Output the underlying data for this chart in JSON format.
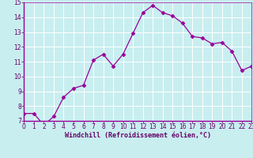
{
  "x": [
    0,
    1,
    2,
    3,
    4,
    5,
    6,
    7,
    8,
    9,
    10,
    11,
    12,
    13,
    14,
    15,
    16,
    17,
    18,
    19,
    20,
    21,
    22,
    23
  ],
  "y": [
    7.5,
    7.5,
    6.7,
    7.3,
    8.6,
    9.2,
    9.4,
    11.1,
    11.5,
    10.7,
    11.5,
    12.9,
    14.3,
    14.8,
    14.3,
    14.1,
    13.6,
    12.7,
    12.6,
    12.2,
    12.3,
    11.7,
    10.4,
    10.7
  ],
  "line_color": "#990099",
  "marker": "D",
  "marker_size": 2.5,
  "bg_color": "#c8eef0",
  "grid_color": "#ffffff",
  "xlabel": "Windchill (Refroidissement éolien,°C)",
  "xlabel_color": "#660066",
  "tick_color": "#660066",
  "ylim": [
    7,
    15
  ],
  "xlim": [
    0,
    23
  ],
  "yticks": [
    7,
    8,
    9,
    10,
    11,
    12,
    13,
    14,
    15
  ],
  "xticks": [
    0,
    1,
    2,
    3,
    4,
    5,
    6,
    7,
    8,
    9,
    10,
    11,
    12,
    13,
    14,
    15,
    16,
    17,
    18,
    19,
    20,
    21,
    22,
    23
  ],
  "spine_color": "#990099",
  "figsize": [
    3.2,
    2.0
  ],
  "dpi": 100
}
